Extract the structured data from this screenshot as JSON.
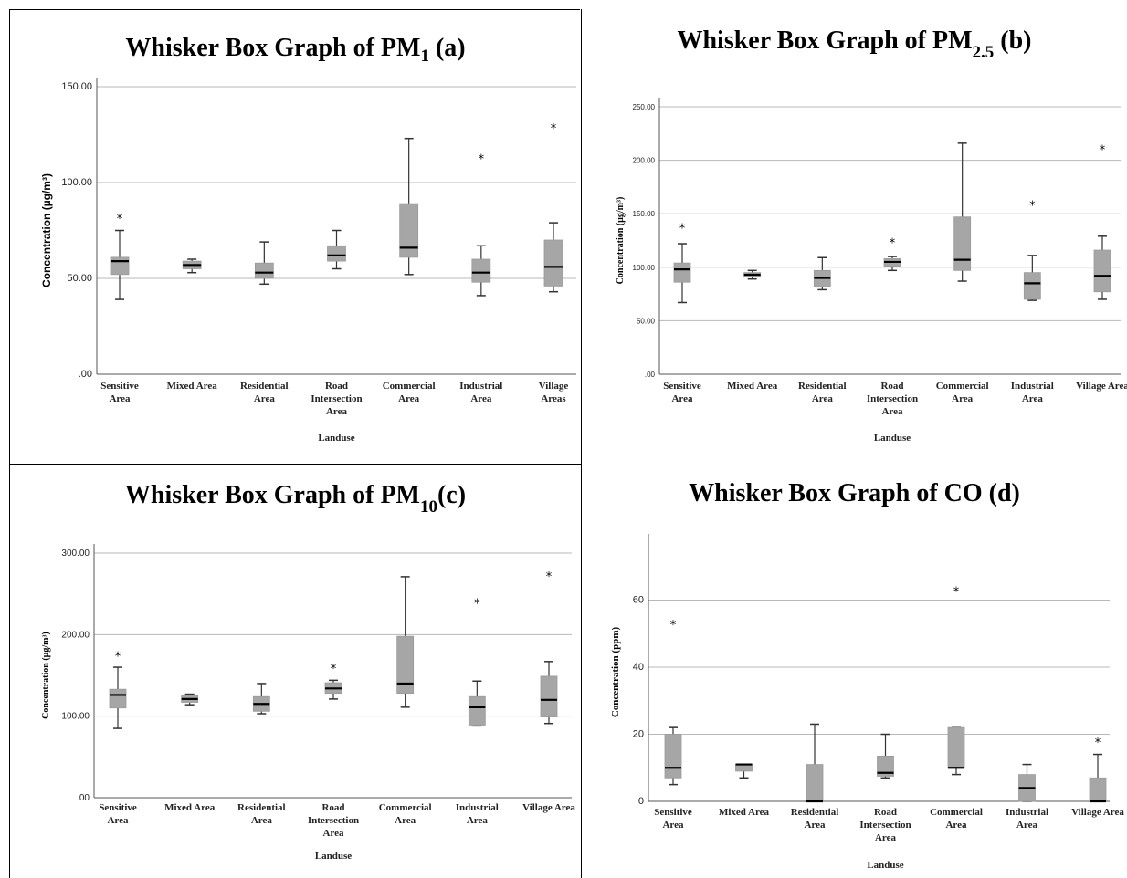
{
  "chart_data": [
    {
      "type": "boxplot",
      "title": {
        "main": "Whisker Box Graph of PM",
        "sub": "1",
        "suffix": " (a)"
      },
      "xlabel": "Landuse",
      "ylabel": "Concentration (µg/m³)",
      "ylim": [
        0,
        150
      ],
      "yticks": [
        0,
        50,
        100,
        150
      ],
      "yticklabels": [
        ".00",
        "50.00",
        "100.00",
        "150.00"
      ],
      "categories": [
        [
          "Sensitive",
          "Area"
        ],
        [
          "Mixed Area"
        ],
        [
          "Residential",
          "Area"
        ],
        [
          "Road",
          "Intersection",
          "Area"
        ],
        [
          "Commercial",
          "Area"
        ],
        [
          "Industrial",
          "Area"
        ],
        [
          "Village",
          "Areas"
        ]
      ],
      "boxes": [
        {
          "min": 39,
          "q1": 52,
          "median": 59,
          "q3": 61,
          "max": 75,
          "outliers": [
            82
          ]
        },
        {
          "min": 53,
          "q1": 55,
          "median": 57,
          "q3": 59,
          "max": 60,
          "outliers": []
        },
        {
          "min": 47,
          "q1": 50,
          "median": 53,
          "q3": 58,
          "max": 69,
          "outliers": []
        },
        {
          "min": 55,
          "q1": 59,
          "median": 62,
          "q3": 67,
          "max": 75,
          "outliers": []
        },
        {
          "min": 52,
          "q1": 61,
          "median": 66,
          "q3": 89,
          "max": 123,
          "outliers": []
        },
        {
          "min": 41,
          "q1": 48,
          "median": 53,
          "q3": 60,
          "max": 67,
          "outliers": [
            113
          ]
        },
        {
          "min": 43,
          "q1": 46,
          "median": 56,
          "q3": 70,
          "max": 79,
          "outliers": [
            129
          ]
        }
      ]
    },
    {
      "type": "boxplot",
      "title": {
        "main": "Whisker Box Graph of PM",
        "sub": "2.5",
        "suffix": " (b)"
      },
      "xlabel": "Landuse",
      "ylabel": "Concentration (µg/m³)",
      "ylim": [
        0,
        250
      ],
      "yticks": [
        0,
        50,
        100,
        150,
        200,
        250
      ],
      "yticklabels": [
        ".00",
        "50.00",
        "100.00",
        "150.00",
        "200.00",
        "250.00"
      ],
      "categories": [
        [
          "Sensitive",
          "Area"
        ],
        [
          "Mixed Area"
        ],
        [
          "Residential",
          "Area"
        ],
        [
          "Road",
          "Intersection",
          "Area"
        ],
        [
          "Commercial",
          "Area"
        ],
        [
          "Industrial",
          "Area"
        ],
        [
          "Village Area"
        ]
      ],
      "boxes": [
        {
          "min": 67,
          "q1": 86,
          "median": 98,
          "q3": 104,
          "max": 122,
          "outliers": [
            138
          ]
        },
        {
          "min": 89,
          "q1": 91,
          "median": 93,
          "q3": 95,
          "max": 97,
          "outliers": []
        },
        {
          "min": 79,
          "q1": 82,
          "median": 90,
          "q3": 97,
          "max": 109,
          "outliers": []
        },
        {
          "min": 97,
          "q1": 101,
          "median": 105,
          "q3": 108,
          "max": 110,
          "outliers": [
            124
          ]
        },
        {
          "min": 87,
          "q1": 97,
          "median": 107,
          "q3": 147,
          "max": 216,
          "outliers": []
        },
        {
          "min": 69,
          "q1": 70,
          "median": 85,
          "q3": 95,
          "max": 111,
          "outliers": [
            159
          ]
        },
        {
          "min": 70,
          "q1": 77,
          "median": 92,
          "q3": 116,
          "max": 129,
          "outliers": [
            211
          ]
        }
      ]
    },
    {
      "type": "boxplot",
      "title": {
        "main": "Whisker Box Graph of PM",
        "sub": "10",
        "suffix": "(c)"
      },
      "xlabel": "Landuse",
      "ylabel": "Concentration (µg/m³)",
      "ylim": [
        0,
        300
      ],
      "yticks": [
        0,
        100,
        200,
        300
      ],
      "yticklabels": [
        ".00",
        "100.00",
        "200.00",
        "300.00"
      ],
      "categories": [
        [
          "Sensitive",
          "Area"
        ],
        [
          "Mixed Area"
        ],
        [
          "Residential",
          "Area"
        ],
        [
          "Road",
          "Intersection",
          "Area"
        ],
        [
          "Commercial",
          "Area"
        ],
        [
          "Industrial",
          "Area"
        ],
        [
          "Village Area"
        ]
      ],
      "boxes": [
        {
          "min": 85,
          "q1": 110,
          "median": 126,
          "q3": 133,
          "max": 160,
          "outliers": [
            175
          ]
        },
        {
          "min": 114,
          "q1": 117,
          "median": 121,
          "q3": 125,
          "max": 127,
          "outliers": []
        },
        {
          "min": 103,
          "q1": 106,
          "median": 115,
          "q3": 124,
          "max": 140,
          "outliers": []
        },
        {
          "min": 121,
          "q1": 128,
          "median": 134,
          "q3": 141,
          "max": 144,
          "outliers": [
            160
          ]
        },
        {
          "min": 111,
          "q1": 128,
          "median": 140,
          "q3": 198,
          "max": 271,
          "outliers": []
        },
        {
          "min": 88,
          "q1": 89,
          "median": 111,
          "q3": 124,
          "max": 143,
          "outliers": [
            240
          ]
        },
        {
          "min": 91,
          "q1": 99,
          "median": 120,
          "q3": 149,
          "max": 167,
          "outliers": [
            273
          ]
        }
      ]
    },
    {
      "type": "boxplot",
      "title": {
        "main": "Whisker Box Graph of CO (d)",
        "sub": "",
        "suffix": ""
      },
      "xlabel": "Landuse",
      "ylabel": "Concentration (ppm)",
      "ylim": [
        0,
        77
      ],
      "yticks": [
        0,
        20,
        40,
        60
      ],
      "yticklabels": [
        "0",
        "20",
        "40",
        "60"
      ],
      "categories": [
        [
          "Sensitive",
          "Area"
        ],
        [
          "Mixed Area"
        ],
        [
          "Residential",
          "Area"
        ],
        [
          "Road",
          "Intersection",
          "Area"
        ],
        [
          "Commercial",
          "Area"
        ],
        [
          "Industrial",
          "Area"
        ],
        [
          "Village Area"
        ]
      ],
      "boxes": [
        {
          "min": 5,
          "q1": 7,
          "median": 10,
          "q3": 20,
          "max": 22,
          "outliers": [
            53
          ]
        },
        {
          "min": 7,
          "q1": 9,
          "median": 11,
          "q3": 11,
          "max": 11,
          "outliers": []
        },
        {
          "min": 0,
          "q1": 0,
          "median": 0,
          "q3": 11,
          "max": 23,
          "outliers": []
        },
        {
          "min": 7,
          "q1": 7.5,
          "median": 8.5,
          "q3": 13.5,
          "max": 20,
          "outliers": []
        },
        {
          "min": 8,
          "q1": 10,
          "median": 10,
          "q3": 22,
          "max": 22,
          "outliers": [
            63
          ]
        },
        {
          "min": 0,
          "q1": 0,
          "median": 4,
          "q3": 8,
          "max": 11,
          "outliers": []
        },
        {
          "min": 0,
          "q1": 0,
          "median": 0,
          "q3": 7,
          "max": 14,
          "outliers": [
            18
          ]
        }
      ]
    }
  ]
}
